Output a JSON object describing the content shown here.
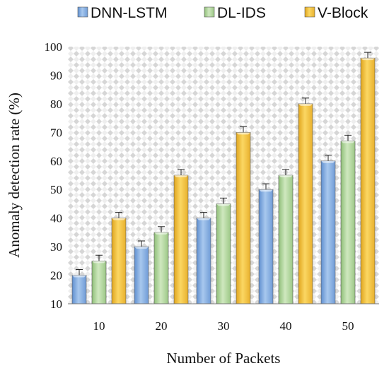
{
  "chart_data": {
    "type": "bar",
    "title": "",
    "xlabel": "Number of Packets",
    "ylabel": "Anomaly detection rate (%)",
    "categories": [
      "10",
      "20",
      "30",
      "40",
      "50"
    ],
    "ylim": [
      10,
      100
    ],
    "yticks": [
      10,
      20,
      30,
      40,
      50,
      60,
      70,
      80,
      90,
      100
    ],
    "error_bars": true,
    "grid": false,
    "background_pattern": "checkered-diamond",
    "legend_position": "top",
    "series": [
      {
        "name": "DNN-LSTM",
        "color": "#8db3e2",
        "values": [
          20,
          30,
          40,
          50,
          60
        ],
        "errors": [
          2,
          2,
          2,
          2,
          2
        ]
      },
      {
        "name": "DL-IDS",
        "color": "#b5d9a0",
        "values": [
          25,
          35,
          45,
          55,
          67
        ],
        "errors": [
          2,
          2,
          2,
          2,
          2
        ]
      },
      {
        "name": "V-Block",
        "color": "#f5c442",
        "values": [
          40,
          55,
          70,
          80,
          96
        ],
        "errors": [
          2,
          2,
          2,
          2,
          2
        ]
      }
    ]
  }
}
